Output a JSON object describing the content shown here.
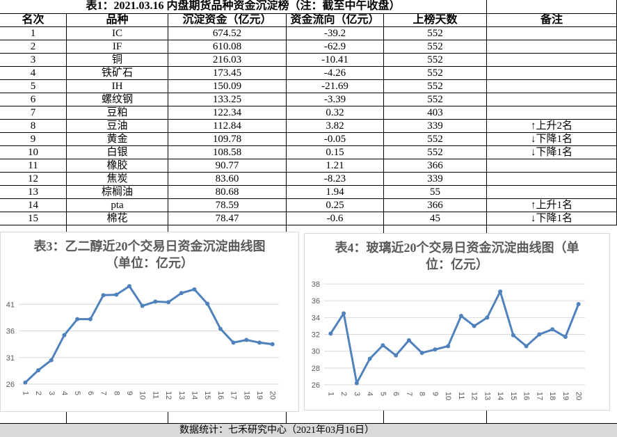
{
  "table": {
    "title": "表1：2021.03.16 内盘期货品种资金沉淀榜（注：截至中午收盘）",
    "header": [
      "名次",
      "品种",
      "沉淀资金（亿元）",
      "资金流向（亿元）",
      "上榜天数",
      "备注"
    ],
    "rows": [
      [
        "1",
        "IC",
        "674.52",
        "-39.2",
        "552",
        ""
      ],
      [
        "2",
        "IF",
        "610.08",
        "-62.9",
        "552",
        ""
      ],
      [
        "3",
        "铜",
        "216.03",
        "-10.41",
        "552",
        ""
      ],
      [
        "4",
        "铁矿石",
        "173.45",
        "-4.26",
        "552",
        ""
      ],
      [
        "5",
        "IH",
        "150.09",
        "-21.69",
        "552",
        ""
      ],
      [
        "6",
        "螺纹钢",
        "133.25",
        "-3.39",
        "552",
        ""
      ],
      [
        "7",
        "豆粕",
        "122.34",
        "0.32",
        "403",
        ""
      ],
      [
        "8",
        "豆油",
        "112.84",
        "3.82",
        "339",
        "↑上升2名"
      ],
      [
        "9",
        "黄金",
        "109.78",
        "-0.05",
        "552",
        "↓下降1名"
      ],
      [
        "10",
        "白银",
        "108.58",
        "0.15",
        "552",
        "↓下降1名"
      ],
      [
        "11",
        "橡胶",
        "90.77",
        "1.21",
        "366",
        ""
      ],
      [
        "12",
        "焦炭",
        "83.60",
        "-8.23",
        "339",
        ""
      ],
      [
        "13",
        "棕榈油",
        "80.68",
        "1.94",
        "55",
        ""
      ],
      [
        "14",
        "pta",
        "78.59",
        "0.25",
        "366",
        "↑上升1名"
      ],
      [
        "15",
        "棉花",
        "78.47",
        "-0.6",
        "45",
        "↓下降1名"
      ]
    ]
  },
  "chart_data": [
    {
      "type": "line",
      "title": "表3：乙二醇近20个交易日资金沉淀曲线图（单位：亿元）",
      "categories": [
        "1",
        "2",
        "3",
        "4",
        "5",
        "6",
        "7",
        "8",
        "9",
        "10",
        "11",
        "12",
        "13",
        "14",
        "15",
        "16",
        "17",
        "18",
        "19",
        "20"
      ],
      "values": [
        26.3,
        28.6,
        30.5,
        35.2,
        38.2,
        38.2,
        42.7,
        42.8,
        44.4,
        40.7,
        41.5,
        41.4,
        43.1,
        43.8,
        41.1,
        36.4,
        33.8,
        34.3,
        33.8,
        33.5
      ],
      "color": "#4f81bd",
      "ylim": [
        26,
        46
      ],
      "yticks": [
        26,
        31,
        36,
        41
      ],
      "grid": true
    },
    {
      "type": "line",
      "title": "表4：玻璃近20个交易日资金沉淀曲线图（单位：亿元）",
      "categories": [
        "1",
        "2",
        "3",
        "4",
        "5",
        "6",
        "7",
        "8",
        "9",
        "10",
        "11",
        "12",
        "13",
        "14",
        "15",
        "16",
        "17",
        "18",
        "19",
        "20"
      ],
      "values": [
        32.1,
        34.5,
        26.2,
        29.1,
        30.7,
        29.5,
        31.3,
        29.8,
        30.2,
        30.6,
        34.2,
        33.0,
        34.0,
        37.1,
        31.9,
        30.6,
        32.0,
        32.6,
        31.7,
        35.6
      ],
      "color": "#4f81bd",
      "ylim": [
        26,
        39
      ],
      "yticks": [
        26,
        28,
        30,
        32,
        34,
        36,
        38
      ],
      "grid": true
    }
  ],
  "footer": "数据统计：七禾研究中心（2021年03月16日）"
}
